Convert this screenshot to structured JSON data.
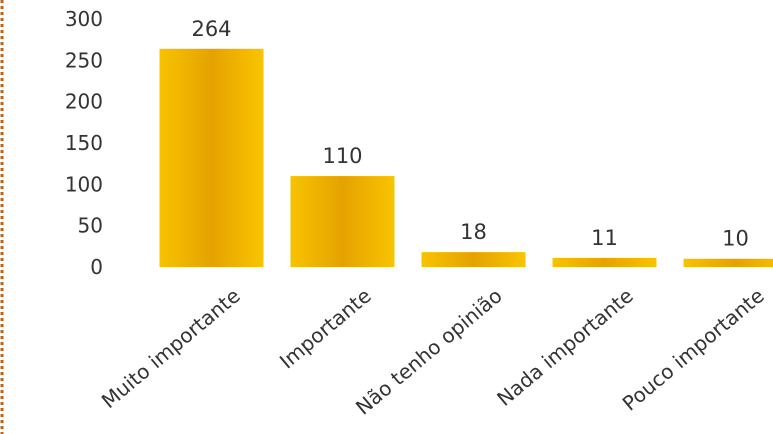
{
  "chart_data": {
    "type": "bar",
    "categories": [
      "Muito importante",
      "Importante",
      "Não tenho opinião",
      "Nada importante",
      "Pouco importante"
    ],
    "values": [
      264,
      110,
      18,
      11,
      10
    ],
    "title": "",
    "xlabel": "",
    "ylabel": "",
    "ylim": [
      0,
      300
    ],
    "yticks": [
      0,
      50,
      100,
      150,
      200,
      250,
      300
    ],
    "grid": false,
    "legend": "none",
    "data_labels": true,
    "colors": {
      "bar_edge": "#f2b600",
      "bar_center": "#e8a500",
      "frame_dots": "#c0621a"
    }
  }
}
